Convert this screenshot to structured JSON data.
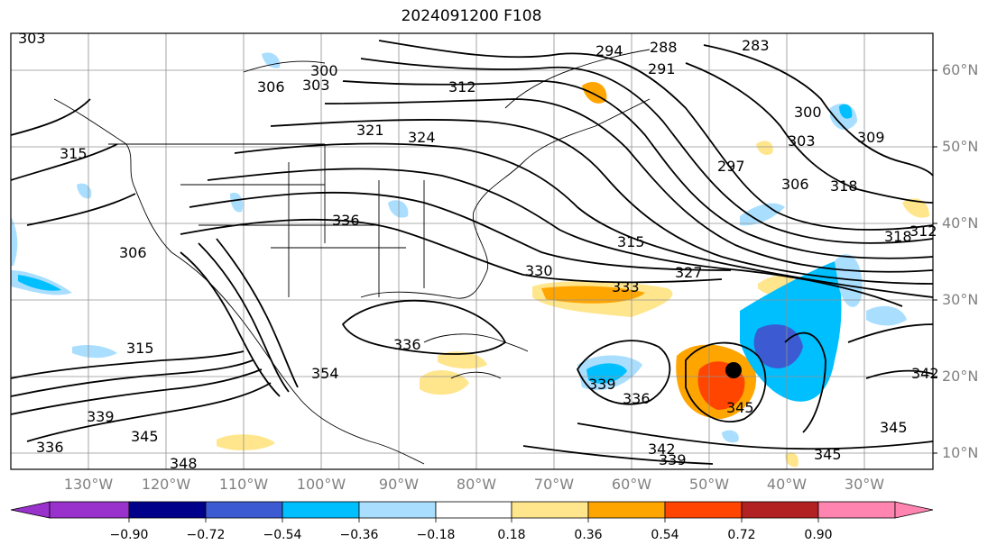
{
  "title": "2024091200 F108",
  "map": {
    "lat_labels": [
      "60°N",
      "50°N",
      "40°N",
      "30°N",
      "20°N",
      "10°N"
    ],
    "lon_labels": [
      "130°W",
      "120°W",
      "110°W",
      "100°W",
      "90°W",
      "80°W",
      "70°W",
      "60°W",
      "50°W",
      "40°W",
      "30°W"
    ],
    "contour_labels": [
      "303",
      "306",
      "300",
      "303",
      "312",
      "294",
      "288",
      "291",
      "283",
      "321",
      "324",
      "315",
      "297",
      "300",
      "303",
      "306",
      "309",
      "318",
      "336",
      "318",
      "312",
      "306",
      "315",
      "330",
      "327",
      "333",
      "336",
      "339",
      "336",
      "345",
      "342",
      "339",
      "345",
      "315",
      "339",
      "345",
      "336",
      "342",
      "345",
      "354",
      "348"
    ],
    "storm_marker": "tropical-cyclone-center"
  },
  "colorbar": {
    "ticks": [
      "−0.90",
      "−0.72",
      "−0.54",
      "−0.36",
      "−0.18",
      "0.18",
      "0.36",
      "0.54",
      "0.72",
      "0.90"
    ],
    "colors": [
      "#9932cc",
      "#00008b",
      "#3c5ad2",
      "#00bfff",
      "#aadeff",
      "#ffffff",
      "#ffe68c",
      "#ffa500",
      "#ff4500",
      "#b22222",
      "#ff85b0"
    ]
  }
}
